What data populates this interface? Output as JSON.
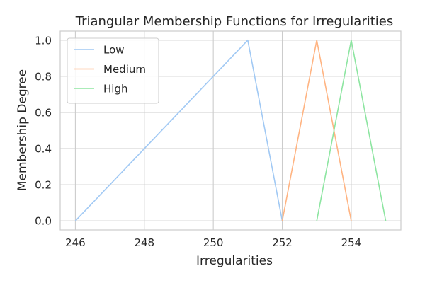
{
  "chart_data": {
    "type": "line",
    "title": "Triangular Membership Functions for Irregularities",
    "xlabel": "Irregularities",
    "ylabel": "Membership Degree",
    "xlim": [
      245.56,
      255.44
    ],
    "ylim": [
      -0.05,
      1.05
    ],
    "xticks": [
      246,
      248,
      250,
      252,
      254
    ],
    "xtick_labels": [
      "246",
      "248",
      "250",
      "252",
      "254"
    ],
    "yticks": [
      0.0,
      0.2,
      0.4,
      0.6,
      0.8,
      1.0
    ],
    "ytick_labels": [
      "0.0",
      "0.2",
      "0.4",
      "0.6",
      "0.8",
      "1.0"
    ],
    "grid": true,
    "legend_position": "upper-left",
    "series": [
      {
        "name": "Low",
        "color": "#a1c9f4",
        "x": [
          246,
          251,
          252
        ],
        "y": [
          0,
          1,
          0
        ]
      },
      {
        "name": "Medium",
        "color": "#ffb482",
        "x": [
          252,
          253,
          254
        ],
        "y": [
          0,
          1,
          0
        ]
      },
      {
        "name": "High",
        "color": "#8de5a1",
        "x": [
          253,
          254,
          255
        ],
        "y": [
          0,
          1,
          0
        ]
      }
    ]
  }
}
